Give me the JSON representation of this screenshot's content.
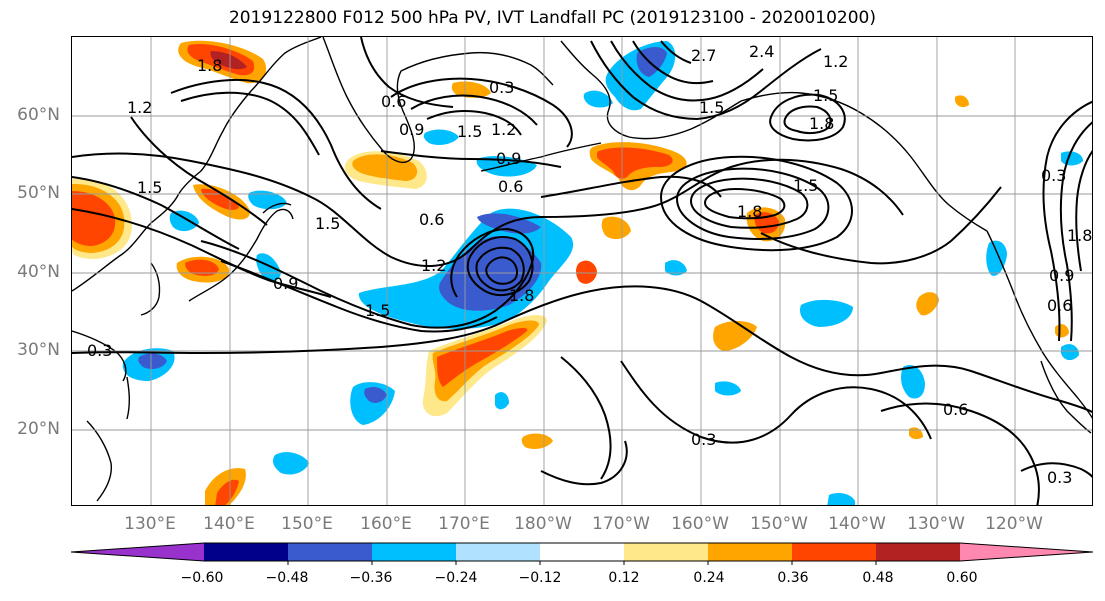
{
  "title": "2019122800 F012 500 hPa PV, IVT Landfall PC (2019123100 - 2020010200)",
  "lat_labels": [
    "60°N",
    "50°N",
    "40°N",
    "30°N",
    "20°N"
  ],
  "lon_labels": [
    "130°E",
    "140°E",
    "150°E",
    "160°E",
    "170°E",
    "180°W",
    "170°W",
    "160°W",
    "150°W",
    "140°W",
    "130°W",
    "120°W"
  ],
  "contour_labels": [
    "1.5",
    "1.8",
    "1.2",
    "0.3",
    "0.9",
    "0.6",
    "1.5",
    "1.2",
    "0.9",
    "0.6",
    "1.5",
    "0.6",
    "1.2",
    "1.5",
    "0.9",
    "1.8",
    "0.3",
    "2.7",
    "2.4",
    "1.2",
    "1.5",
    "1.8",
    "1.5",
    "1.8",
    "1.5",
    "0.6",
    "0.3",
    "0.3",
    "0.3",
    "0.6",
    "0.9",
    "1.8"
  ],
  "colorbar": {
    "ticks": [
      "−0.60",
      "−0.48",
      "−0.36",
      "−0.24",
      "−0.12",
      "0.12",
      "0.24",
      "0.36",
      "0.48",
      "0.60"
    ],
    "colors": [
      "#9932cc",
      "#00008b",
      "#3a5bcd",
      "#00bfff",
      "#b0e2ff",
      "#ffffff",
      "#ffe88a",
      "#ffa500",
      "#ff4500",
      "#b22222",
      "#ff88b0"
    ]
  },
  "fill_colors": {
    "neg_strong": "#3a5bcd",
    "neg_mid": "#00bfff",
    "pos_light": "#ffe88a",
    "pos_mid": "#ffa500",
    "pos_strong": "#ff4500",
    "pos_max": "#b22222"
  }
}
